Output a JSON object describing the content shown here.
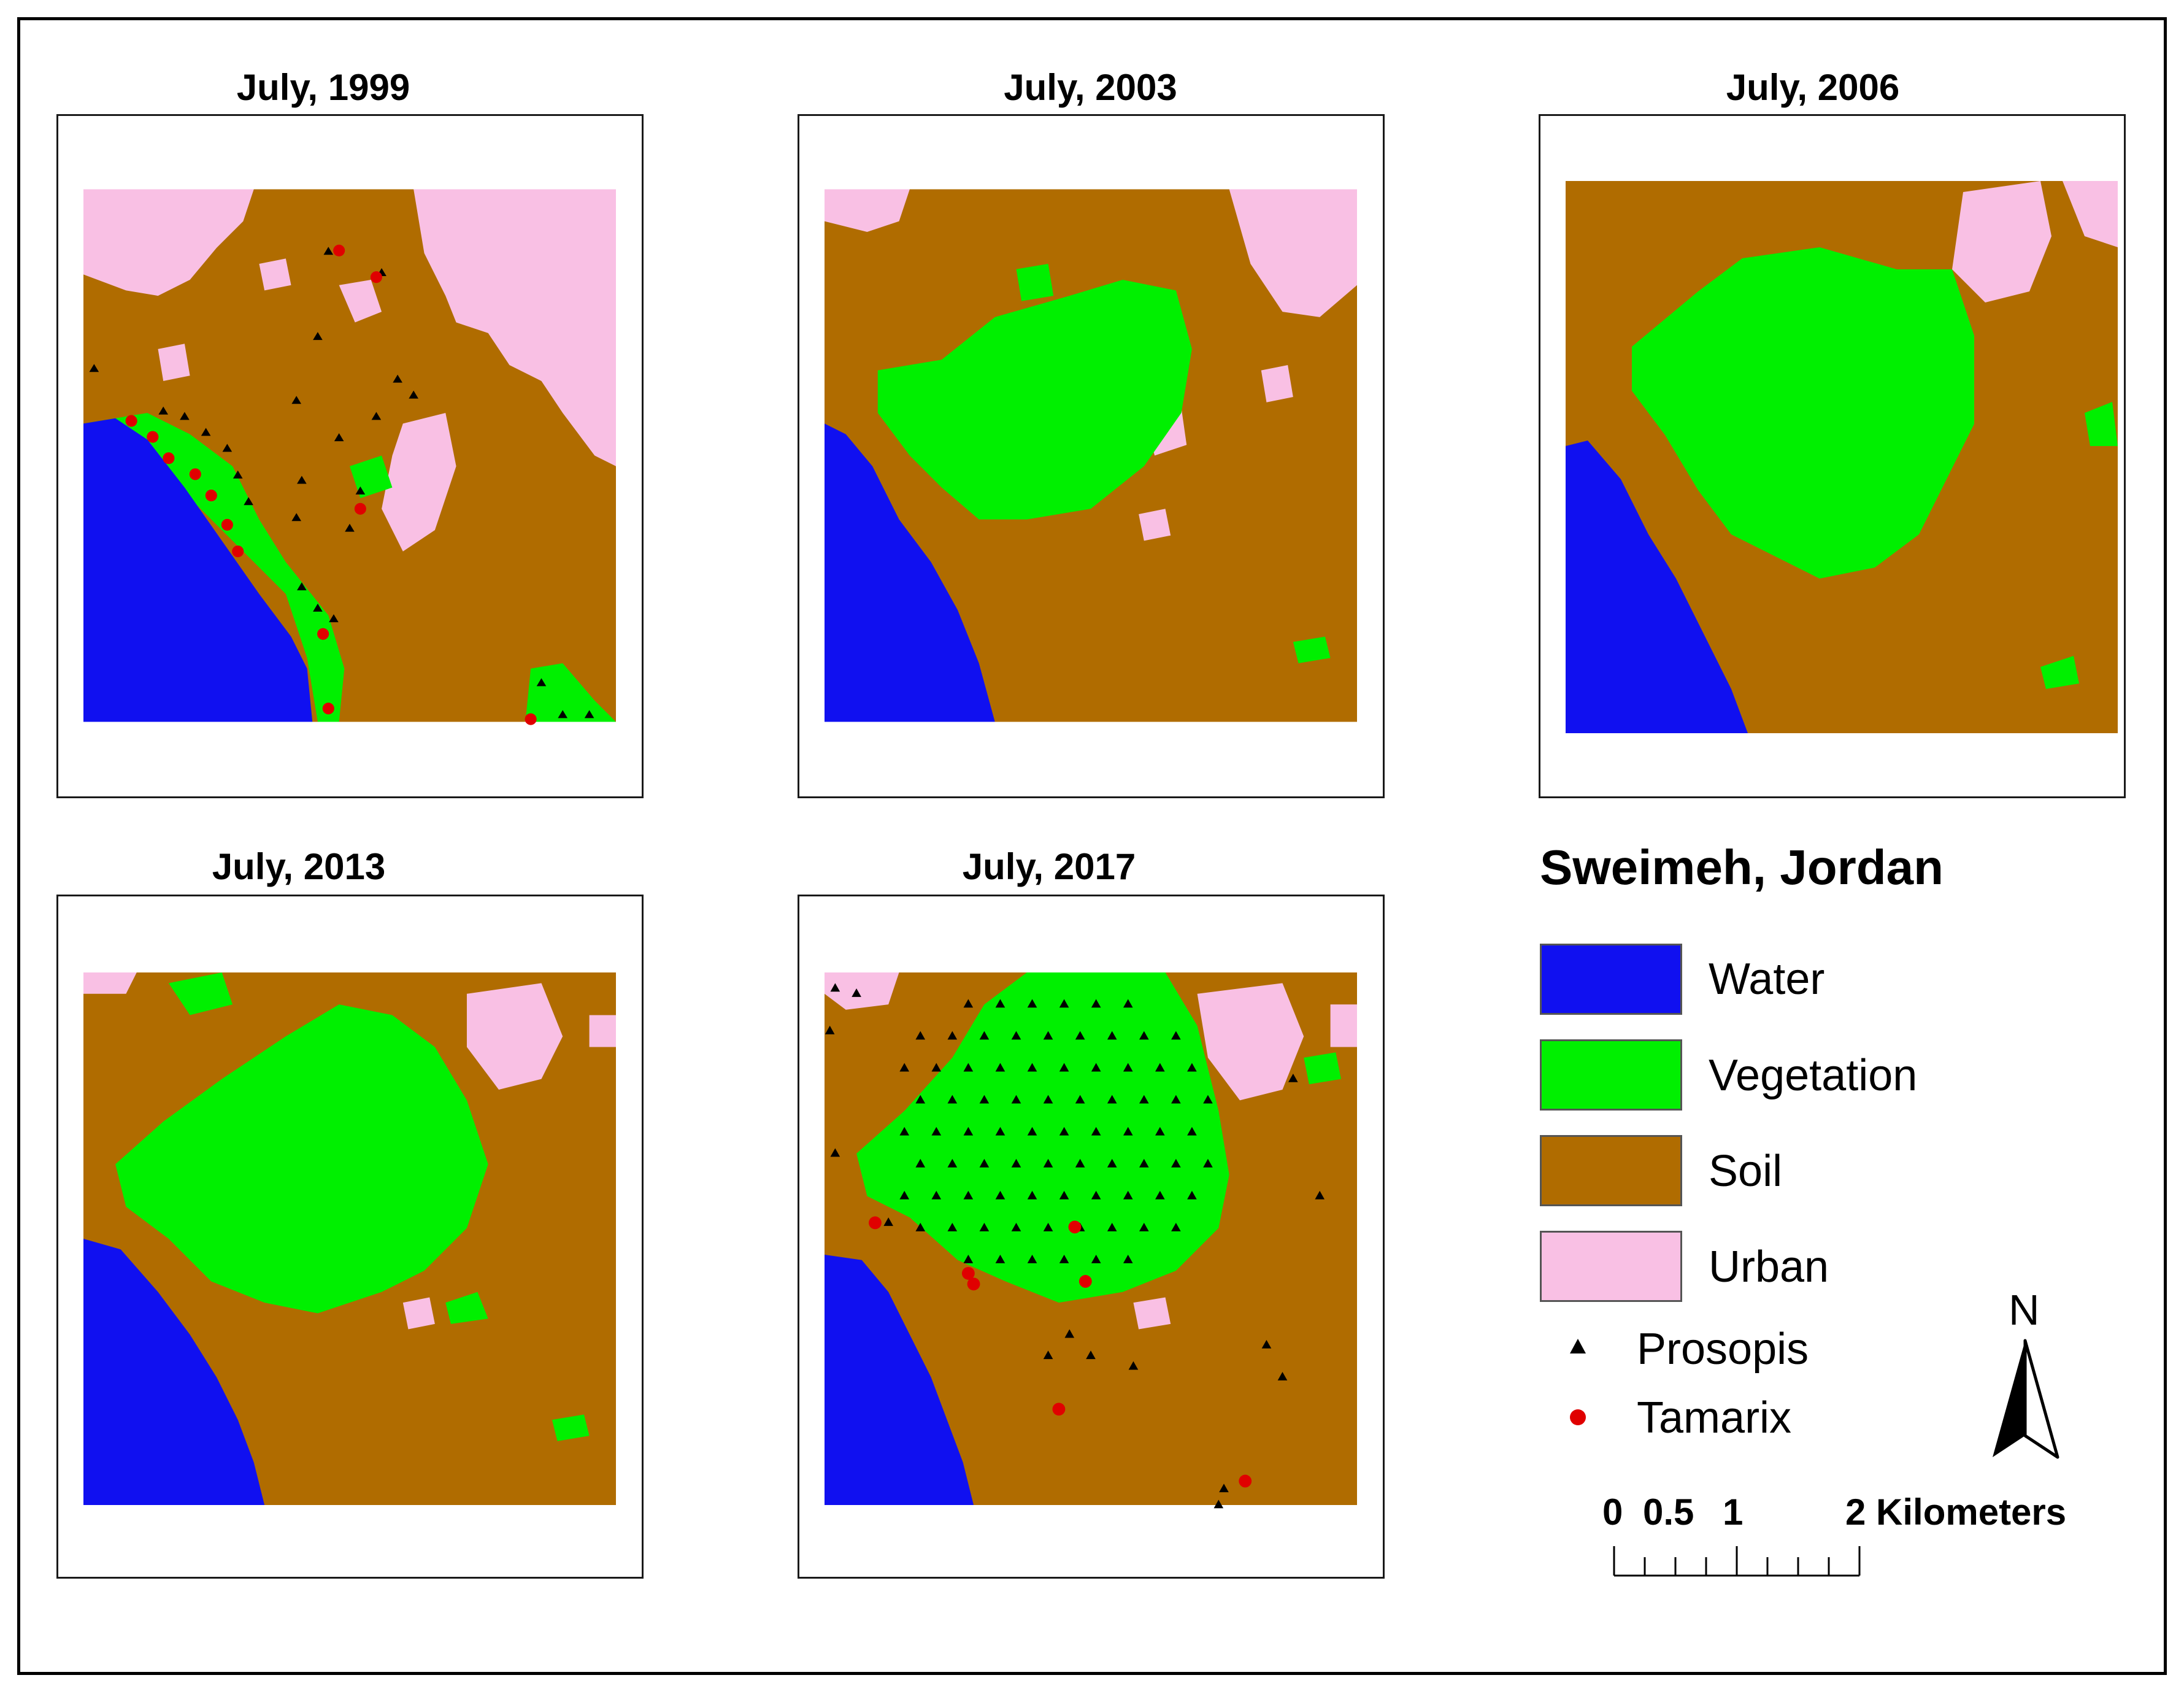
{
  "panels": [
    {
      "title": "July, 1999"
    },
    {
      "title": "July, 2003"
    },
    {
      "title": "July, 2006"
    },
    {
      "title": "July, 2013"
    },
    {
      "title": "July, 2017"
    }
  ],
  "legend": {
    "title": "Sweimeh, Jordan",
    "classes": [
      {
        "label": "Water",
        "color": "#1010f0"
      },
      {
        "label": "Vegetation",
        "color": "#00f000"
      },
      {
        "label": "Soil",
        "color": "#b06c00"
      },
      {
        "label": "Urban",
        "color": "#f9c0e4"
      }
    ],
    "symbols": [
      {
        "label": "Prosopis",
        "icon": "triangle-icon",
        "color": "#000000"
      },
      {
        "label": "Tamarix",
        "icon": "circle-icon",
        "color": "#e00000"
      }
    ]
  },
  "north_arrow": {
    "label": "N"
  },
  "scale_bar": {
    "ticks": [
      "0",
      "0.5",
      "1",
      "2 Kilometers"
    ]
  }
}
